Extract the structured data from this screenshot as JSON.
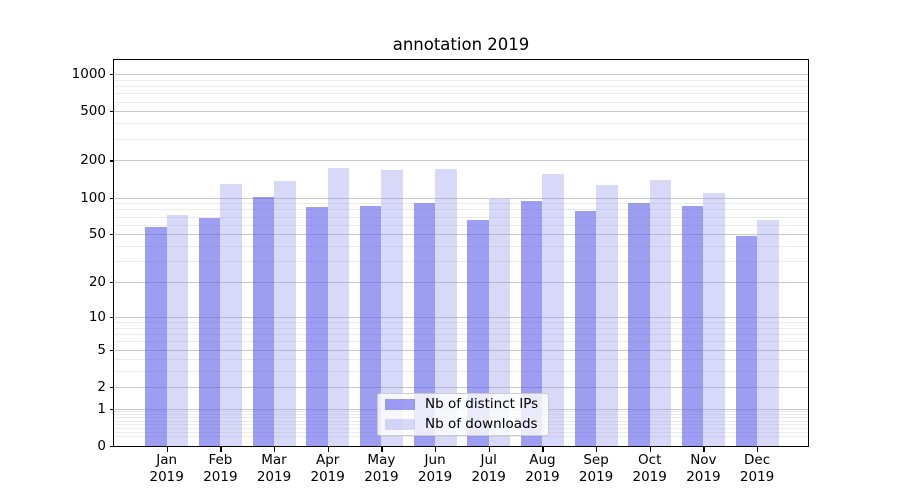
{
  "title": "annotation 2019",
  "chart_data": {
    "type": "bar",
    "title": "annotation 2019",
    "categories": [
      "Jan 2019",
      "Feb 2019",
      "Mar 2019",
      "Apr 2019",
      "May 2019",
      "Jun 2019",
      "Jul 2019",
      "Aug 2019",
      "Sep 2019",
      "Oct 2019",
      "Nov 2019",
      "Dec 2019"
    ],
    "months": [
      "Jan",
      "Feb",
      "Mar",
      "Apr",
      "May",
      "Jun",
      "Jul",
      "Aug",
      "Sep",
      "Oct",
      "Nov",
      "Dec"
    ],
    "year": "2019",
    "series": [
      {
        "name": "Nb of distinct IPs",
        "values": [
          57,
          68,
          101,
          83,
          86,
          90,
          66,
          94,
          77,
          90,
          86,
          48
        ]
      },
      {
        "name": "Nb of downloads",
        "values": [
          72,
          128,
          136,
          173,
          167,
          170,
          97,
          155,
          127,
          139,
          109,
          65
        ]
      }
    ],
    "yscale": "log(value+1)",
    "ylim": [
      0,
      1297
    ],
    "yticks": [
      1000,
      500,
      200,
      100,
      50,
      20,
      10,
      5,
      2,
      1,
      0
    ],
    "minor_gridline_values": [
      0.2,
      0.3,
      0.4,
      0.5,
      0.6,
      0.7,
      0.8,
      0.9,
      3,
      4,
      6,
      7,
      8,
      9,
      30,
      40,
      60,
      70,
      80,
      90,
      300,
      400,
      600,
      700,
      800,
      900
    ],
    "grid": true,
    "legend_position": "lower center (inside plot)",
    "colors": {
      "distinct_ips_bar": "rgba(97,97,232,0.62)",
      "downloads_bar": "rgba(148,148,240,0.37)",
      "distinct_ips_hex": "#9d9df1",
      "downloads_hex": "#d7d7fa",
      "grid_major": "#c9c9c9",
      "grid_minor": "#ebebeb",
      "axis_frame": "#000000",
      "text": "#000000"
    }
  },
  "legend": {
    "items": [
      {
        "label": "Nb of distinct IPs",
        "swatch": "distinct-ips-swatch"
      },
      {
        "label": "Nb of downloads",
        "swatch": "downloads-swatch"
      }
    ]
  }
}
